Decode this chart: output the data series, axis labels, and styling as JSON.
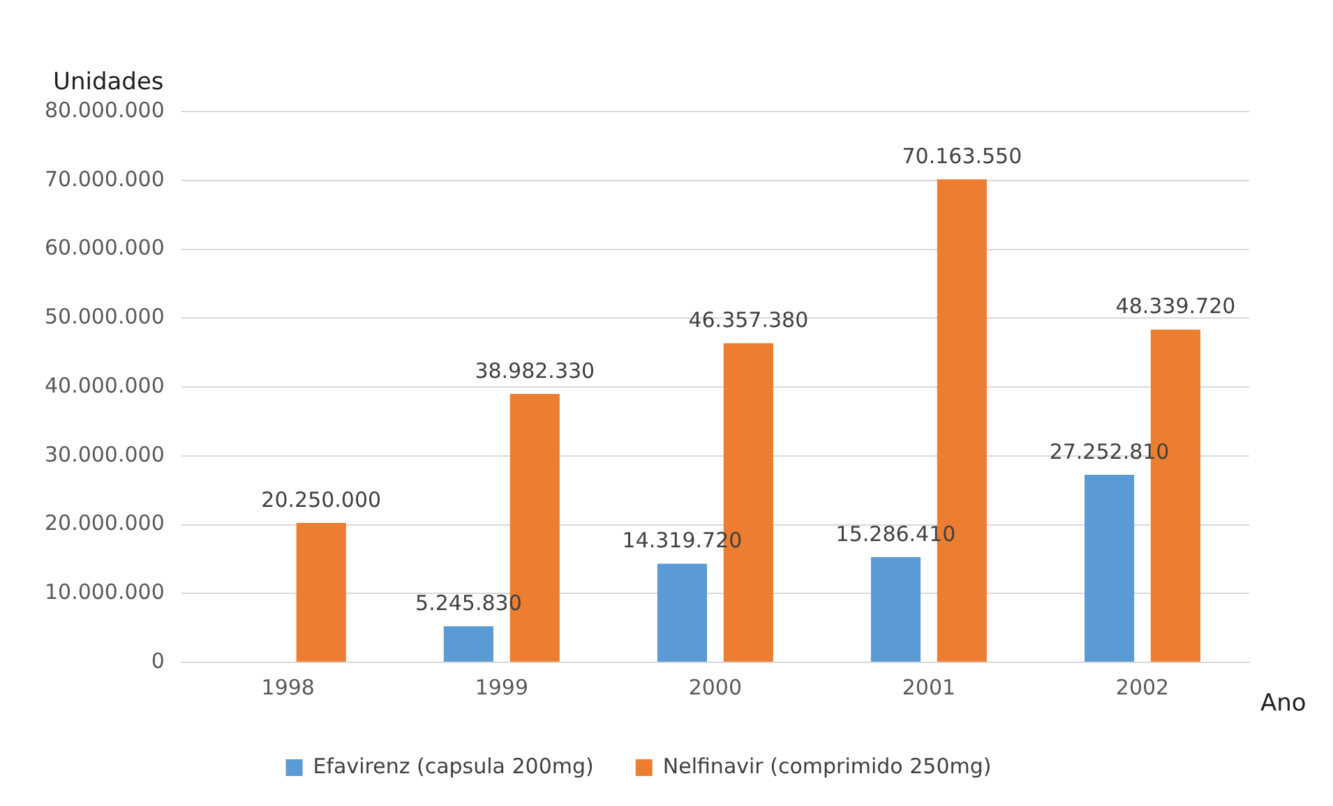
{
  "chart_data": {
    "type": "bar",
    "ylabel": "Unidades",
    "xlabel": "Ano",
    "categories": [
      "1998",
      "1999",
      "2000",
      "2001",
      "2002"
    ],
    "series": [
      {
        "name": "Efavirenz (capsula 200mg)",
        "color": "#5b9bd5",
        "values": [
          null,
          5245830,
          14319720,
          15286410,
          27252810
        ],
        "value_labels": [
          null,
          "5.245.830",
          "14.319.720",
          "15.286.410",
          "27.252.810"
        ]
      },
      {
        "name": "Nelfinavir (comprimido 250mg)",
        "color": "#ed7d31",
        "values": [
          20250000,
          38982330,
          46357380,
          70163550,
          48339720
        ],
        "value_labels": [
          "20.250.000",
          "38.982.330",
          "46.357.380",
          "70.163.550",
          "48.339.720"
        ]
      }
    ],
    "ylim": [
      0,
      80000000
    ],
    "yticks": [
      {
        "value": 0,
        "label": "0"
      },
      {
        "value": 10000000,
        "label": "10.000.000"
      },
      {
        "value": 20000000,
        "label": "20.000.000"
      },
      {
        "value": 30000000,
        "label": "30.000.000"
      },
      {
        "value": 40000000,
        "label": "40.000.000"
      },
      {
        "value": 50000000,
        "label": "50.000.000"
      },
      {
        "value": 60000000,
        "label": "60.000.000"
      },
      {
        "value": 70000000,
        "label": "70.000.000"
      },
      {
        "value": 80000000,
        "label": "80.000.000"
      }
    ],
    "grid": "y",
    "legend": "bottom"
  }
}
